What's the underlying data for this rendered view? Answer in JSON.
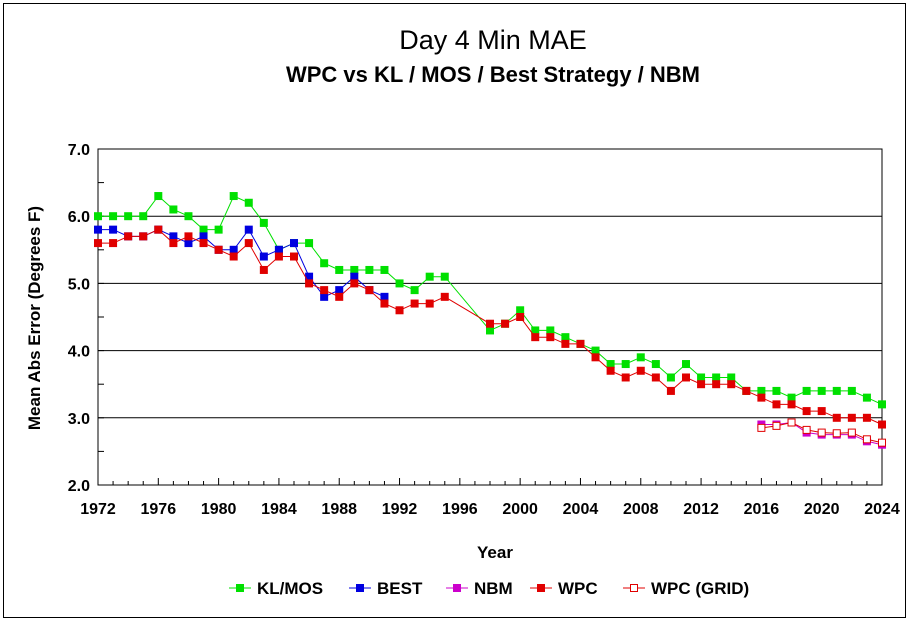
{
  "chart_data": {
    "type": "line",
    "title": "Day 4 Min MAE",
    "subtitle": "WPC vs KL / MOS / Best Strategy / NBM",
    "xlabel": "Year",
    "ylabel": "Mean Abs Error (Degrees F)",
    "xlim": [
      1972,
      2024
    ],
    "ylim": [
      2.0,
      7.0
    ],
    "x_ticks": [
      "1972",
      "1976",
      "1980",
      "1984",
      "1988",
      "1992",
      "1996",
      "2000",
      "2004",
      "2008",
      "2012",
      "2016",
      "2020",
      "2024"
    ],
    "y_ticks": [
      "2.0",
      "3.0",
      "4.0",
      "5.0",
      "6.0",
      "7.0"
    ],
    "grid": "horizontal",
    "legend_position": "bottom",
    "series": [
      {
        "name": "KL/MOS",
        "color": "#00e000",
        "marker": "filled-square",
        "x": [
          1972,
          1973,
          1974,
          1975,
          1976,
          1977,
          1978,
          1979,
          1980,
          1981,
          1982,
          1983,
          1984,
          1985,
          1986,
          1987,
          1988,
          1989,
          1990,
          1991,
          1992,
          1993,
          1994,
          1995,
          1998,
          1999,
          2000,
          2001,
          2002,
          2003,
          2004,
          2005,
          2006,
          2007,
          2008,
          2009,
          2010,
          2011,
          2012,
          2013,
          2014,
          2015,
          2016,
          2017,
          2018,
          2019,
          2020,
          2021,
          2022,
          2023,
          2024
        ],
        "y": [
          6.0,
          6.0,
          6.0,
          6.0,
          6.3,
          6.1,
          6.0,
          5.8,
          5.8,
          6.3,
          6.2,
          5.9,
          5.5,
          5.6,
          5.6,
          5.3,
          5.2,
          5.2,
          5.2,
          5.2,
          5.0,
          4.9,
          5.1,
          5.1,
          4.3,
          4.4,
          4.6,
          4.3,
          4.3,
          4.2,
          4.1,
          4.0,
          3.8,
          3.8,
          3.9,
          3.8,
          3.6,
          3.8,
          3.6,
          3.6,
          3.6,
          3.4,
          3.4,
          3.4,
          3.3,
          3.4,
          3.4,
          3.4,
          3.4,
          3.3,
          3.2
        ]
      },
      {
        "name": "BEST",
        "color": "#0000e0",
        "marker": "filled-square",
        "x": [
          1972,
          1973,
          1974,
          1975,
          1976,
          1977,
          1978,
          1979,
          1980,
          1981,
          1982,
          1983,
          1984,
          1985,
          1986,
          1987,
          1988,
          1989,
          1990,
          1991
        ],
        "y": [
          5.8,
          5.8,
          5.7,
          5.7,
          5.8,
          5.7,
          5.6,
          5.7,
          5.5,
          5.5,
          5.8,
          5.4,
          5.5,
          5.6,
          5.1,
          4.8,
          4.9,
          5.1,
          4.9,
          4.8
        ]
      },
      {
        "name": "NBM",
        "color": "#cc00cc",
        "marker": "filled-square",
        "x": [
          2016,
          2017,
          2018,
          2019,
          2020,
          2021,
          2022,
          2023,
          2024
        ],
        "y": [
          2.9,
          2.9,
          2.93,
          2.78,
          2.75,
          2.75,
          2.75,
          2.65,
          2.6
        ]
      },
      {
        "name": "WPC",
        "color": "#e00000",
        "marker": "filled-square",
        "x": [
          1972,
          1973,
          1974,
          1975,
          1976,
          1977,
          1978,
          1979,
          1980,
          1981,
          1982,
          1983,
          1984,
          1985,
          1986,
          1987,
          1988,
          1989,
          1990,
          1991,
          1992,
          1993,
          1994,
          1995,
          1998,
          1999,
          2000,
          2001,
          2002,
          2003,
          2004,
          2005,
          2006,
          2007,
          2008,
          2009,
          2010,
          2011,
          2012,
          2013,
          2014,
          2015,
          2016,
          2017,
          2018,
          2019,
          2020,
          2021,
          2022,
          2023,
          2024
        ],
        "y": [
          5.6,
          5.6,
          5.7,
          5.7,
          5.8,
          5.6,
          5.7,
          5.6,
          5.5,
          5.4,
          5.6,
          5.2,
          5.4,
          5.4,
          5.0,
          4.9,
          4.8,
          5.0,
          4.9,
          4.7,
          4.6,
          4.7,
          4.7,
          4.8,
          4.4,
          4.4,
          4.5,
          4.2,
          4.2,
          4.1,
          4.1,
          3.9,
          3.7,
          3.6,
          3.7,
          3.6,
          3.4,
          3.6,
          3.5,
          3.5,
          3.5,
          3.4,
          3.3,
          3.2,
          3.2,
          3.1,
          3.1,
          3.0,
          3.0,
          3.0,
          2.9
        ]
      },
      {
        "name": "WPC (GRID)",
        "color": "#e00000",
        "marker": "open-square",
        "x": [
          2016,
          2017,
          2018,
          2019,
          2020,
          2021,
          2022,
          2023,
          2024
        ],
        "y": [
          2.85,
          2.88,
          2.93,
          2.82,
          2.78,
          2.77,
          2.78,
          2.68,
          2.63
        ]
      }
    ]
  }
}
